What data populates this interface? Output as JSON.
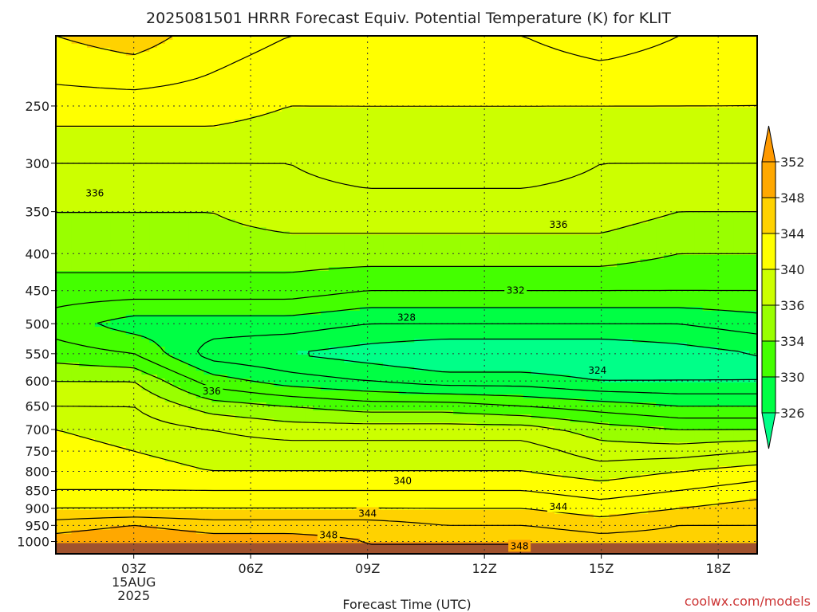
{
  "chart_data": {
    "type": "heatmap",
    "title": "2025081501 HRRR Forecast Equiv. Potential Temperature (K) for KLIT",
    "xlabel": "Forecast Time (UTC)",
    "ylabel": "",
    "x_unit": "hour",
    "xlim": [
      1,
      19
    ],
    "y_unit": "hPa",
    "ylim": [
      1040,
      200
    ],
    "y_scale": "log",
    "x_ticks": [
      {
        "x": 3,
        "label": "03Z",
        "sub1": "15AUG",
        "sub2": "2025"
      },
      {
        "x": 6,
        "label": "06Z"
      },
      {
        "x": 9,
        "label": "09Z"
      },
      {
        "x": 12,
        "label": "12Z"
      },
      {
        "x": 15,
        "label": "15Z"
      },
      {
        "x": 18,
        "label": "18Z"
      }
    ],
    "y_ticks": [
      250,
      300,
      350,
      400,
      450,
      500,
      550,
      600,
      650,
      700,
      750,
      800,
      850,
      900,
      950,
      1000
    ],
    "grid": true,
    "colorbar": {
      "levels": [
        326,
        330,
        334,
        336,
        340,
        344,
        348,
        352
      ],
      "labels": [
        "326",
        "330",
        "334",
        "336",
        "340",
        "344",
        "348",
        "352"
      ],
      "colors": [
        "#00ff44",
        "#44ff00",
        "#99ff00",
        "#ccff00",
        "#ffff00",
        "#ffd200",
        "#ffa800"
      ],
      "under_color": "#00ff88",
      "over_color": "#ff9900",
      "placement": "right"
    },
    "ground_color": "#a0522d",
    "profiles": [
      {
        "x": 1,
        "pressure": [
          200,
          250,
          300,
          350,
          400,
          450,
          500,
          550,
          600,
          650,
          700,
          750,
          800,
          850,
          900,
          950,
          1000
        ],
        "theta_e": [
          344,
          341,
          338,
          336,
          335,
          333,
          331,
          333,
          336,
          338,
          340,
          341,
          341,
          342,
          344,
          347,
          349
        ]
      },
      {
        "x": 3,
        "pressure": [
          200,
          250,
          300,
          350,
          400,
          450,
          500,
          550,
          600,
          650,
          700,
          750,
          800,
          850,
          900,
          950,
          1000
        ],
        "theta_e": [
          345,
          341,
          338,
          336,
          335,
          333,
          329,
          332,
          336,
          338,
          339,
          340,
          341,
          342,
          344,
          348,
          350
        ]
      },
      {
        "x": 5,
        "pressure": [
          200,
          250,
          300,
          350,
          400,
          450,
          500,
          550,
          600,
          650,
          700,
          750,
          800,
          850,
          900,
          950,
          1000
        ],
        "theta_e": [
          343,
          341,
          338,
          336,
          335,
          333,
          329,
          327,
          331,
          335,
          338,
          339,
          340,
          342,
          344,
          347,
          349
        ]
      },
      {
        "x": 7,
        "pressure": [
          200,
          250,
          300,
          350,
          400,
          450,
          500,
          550,
          600,
          650,
          700,
          750,
          800,
          850,
          900,
          950,
          1000
        ],
        "theta_e": [
          342,
          340,
          338,
          337,
          335,
          333,
          329,
          326,
          329,
          334,
          337,
          339,
          340,
          342,
          344,
          347,
          349
        ]
      },
      {
        "x": 9,
        "pressure": [
          200,
          250,
          300,
          350,
          400,
          450,
          500,
          550,
          600,
          650,
          700,
          750,
          800,
          850,
          900,
          950,
          1000
        ],
        "theta_e": [
          342,
          340,
          339,
          337,
          335,
          332,
          328,
          325,
          328,
          333,
          337,
          339,
          340,
          342,
          344,
          347,
          348
        ]
      },
      {
        "x": 11,
        "pressure": [
          200,
          250,
          300,
          350,
          400,
          450,
          500,
          550,
          600,
          650,
          700,
          750,
          800,
          850,
          900,
          950,
          1000
        ],
        "theta_e": [
          342,
          340,
          339,
          337,
          335,
          332,
          328,
          324,
          327,
          333,
          337,
          339,
          340,
          342,
          344,
          346,
          348
        ]
      },
      {
        "x": 13,
        "pressure": [
          200,
          250,
          300,
          350,
          400,
          450,
          500,
          550,
          600,
          650,
          700,
          750,
          800,
          850,
          900,
          950,
          1000
        ],
        "theta_e": [
          342,
          340,
          339,
          337,
          335,
          332,
          328,
          324,
          327,
          332,
          337,
          339,
          340,
          342,
          344,
          346,
          348
        ]
      },
      {
        "x": 15,
        "pressure": [
          200,
          250,
          300,
          350,
          400,
          450,
          500,
          550,
          600,
          650,
          700,
          750,
          800,
          850,
          900,
          950,
          1000
        ],
        "theta_e": [
          343,
          340,
          338,
          337,
          335,
          332,
          328,
          324,
          326,
          331,
          335,
          337,
          339,
          341,
          343,
          345,
          347
        ]
      },
      {
        "x": 17,
        "pressure": [
          200,
          250,
          300,
          350,
          400,
          450,
          500,
          550,
          600,
          650,
          700,
          750,
          800,
          850,
          900,
          950,
          1000
        ],
        "theta_e": [
          342,
          340,
          338,
          336,
          334,
          332,
          328,
          325,
          326,
          330,
          334,
          337,
          340,
          342,
          344,
          346,
          347
        ]
      },
      {
        "x": 19,
        "pressure": [
          200,
          250,
          300,
          350,
          400,
          450,
          500,
          550,
          600,
          650,
          700,
          750,
          800,
          850,
          900,
          950,
          1000
        ],
        "theta_e": [
          341,
          340,
          338,
          336,
          334,
          332,
          329,
          326,
          326,
          330,
          334,
          338,
          341,
          343,
          345,
          346,
          347
        ]
      }
    ],
    "contour_levels": [
      324,
      326,
      328,
      330,
      332,
      334,
      336,
      338,
      340,
      342,
      344,
      346,
      348,
      350
    ],
    "contour_labels": [
      {
        "text": "336",
        "x": 2.0,
        "p": 330
      },
      {
        "text": "336",
        "x": 13.9,
        "p": 365
      },
      {
        "text": "332",
        "x": 12.8,
        "p": 450
      },
      {
        "text": "328",
        "x": 10.0,
        "p": 490
      },
      {
        "text": "324",
        "x": 14.9,
        "p": 580
      },
      {
        "text": "336",
        "x": 5.0,
        "p": 620
      },
      {
        "text": "340",
        "x": 9.9,
        "p": 825
      },
      {
        "text": "344",
        "x": 9.0,
        "p": 915
      },
      {
        "text": "344",
        "x": 13.9,
        "p": 895
      },
      {
        "text": "348",
        "x": 8.0,
        "p": 980
      },
      {
        "text": "348",
        "x": 12.9,
        "p": 1015
      }
    ]
  },
  "watermark": "coolwx.com/models"
}
